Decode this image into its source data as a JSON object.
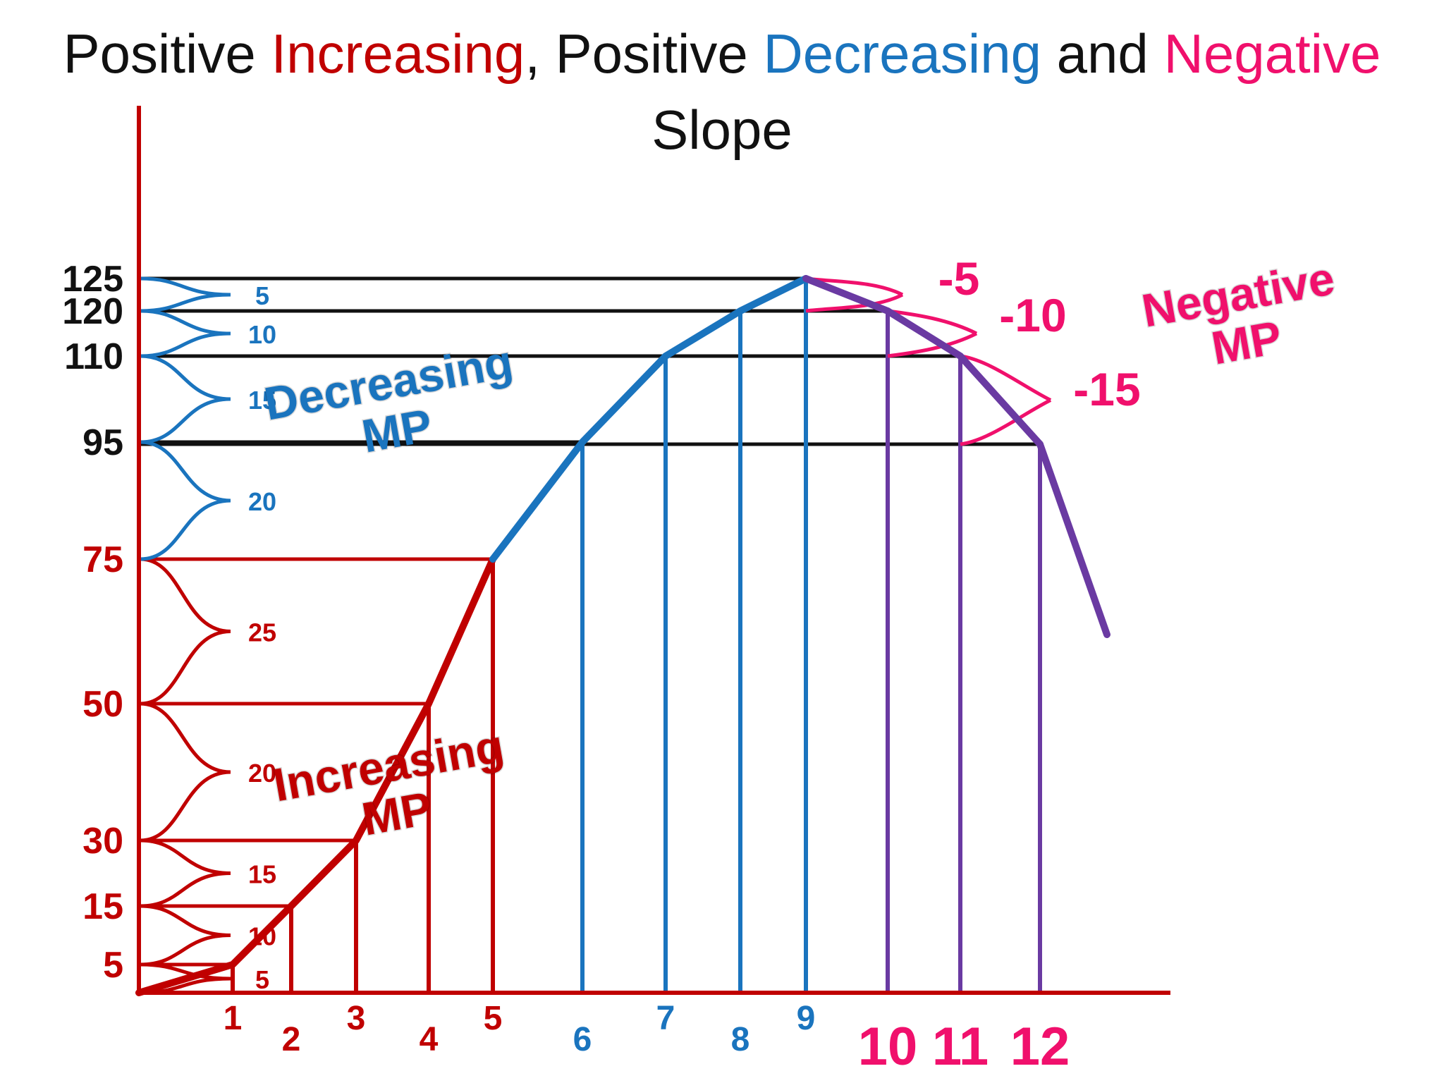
{
  "title": {
    "p1": "Positive ",
    "p2": "Increasing",
    "p3": ", Positive ",
    "p4": "Decreasing",
    "p5": " and ",
    "p6": "Negative",
    "p7": "Slope"
  },
  "colors": {
    "increasing": "#c00000",
    "decreasing": "#1a74be",
    "negative": "#f0106c",
    "negative_curve": "#6a3aa2",
    "levels": "#111111"
  },
  "labels": {
    "increasing_mp": [
      "Increasing",
      "MP"
    ],
    "decreasing_mp": [
      "Decreasing",
      "MP"
    ],
    "negative_mp": [
      "Negative",
      "MP"
    ]
  },
  "chart_data": {
    "type": "line",
    "title": "Positive Increasing, Positive Decreasing and Negative Slope",
    "x": [
      0,
      1,
      2,
      3,
      4,
      5,
      6,
      7,
      8,
      9,
      10,
      11,
      12
    ],
    "y": [
      0,
      5,
      15,
      30,
      50,
      75,
      95,
      110,
      120,
      125,
      120,
      110,
      95
    ],
    "x_tick_labels": [
      "1",
      "2",
      "3",
      "4",
      "5",
      "6",
      "7",
      "8",
      "9",
      "10",
      "11",
      "12"
    ],
    "y_tick_labels": [
      "5",
      "15",
      "30",
      "50",
      "75",
      "95",
      "110",
      "120",
      "125"
    ],
    "segments": [
      {
        "name": "Increasing MP",
        "x_from": 0,
        "x_to": 5,
        "marginal": [
          "5",
          "10",
          "15",
          "20",
          "25"
        ]
      },
      {
        "name": "Decreasing MP",
        "x_from": 5,
        "x_to": 9,
        "marginal": [
          "20",
          "15",
          "10",
          "5"
        ]
      },
      {
        "name": "Negative MP",
        "x_from": 9,
        "x_to": 12,
        "marginal": [
          "-5",
          "-10",
          "-15"
        ]
      }
    ],
    "grid": false
  }
}
